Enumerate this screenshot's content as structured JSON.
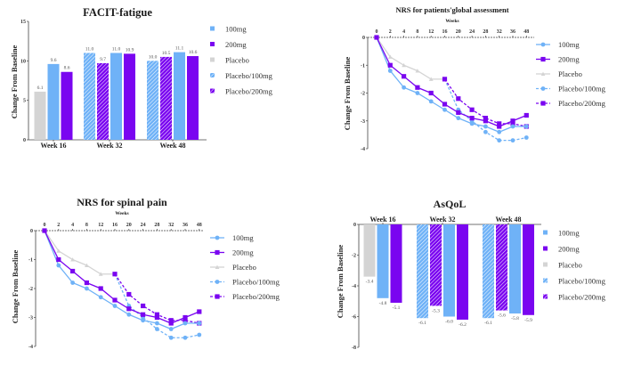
{
  "colors": {
    "100mg": "#6fb2f7",
    "200mg": "#7a05f0",
    "Placebo": "#d4d4d4",
    "Placebo/100mg": "#6fb2f7",
    "Placebo/200mg": "#7a05f0",
    "axis": "#444444"
  },
  "chart_data": [
    {
      "id": "facit",
      "type": "bar",
      "title": "FACIT-fatigue",
      "xlabel": "",
      "ylabel": "Change From Baseline",
      "ylim": [
        0,
        15
      ],
      "yticks": [
        0,
        5,
        10,
        15
      ],
      "categories": [
        "Week 16",
        "Week 32",
        "Week 48"
      ],
      "legend_position": "right",
      "legend": [
        "100mg",
        "200mg",
        "Placebo",
        "Placebo/100mg",
        "Placebo/200mg"
      ],
      "groups": [
        {
          "category": "Week 16",
          "bars": [
            {
              "series": "Placebo",
              "value": 6.1,
              "label": "6.1"
            },
            {
              "series": "100mg",
              "value": 9.6,
              "label": "9.6"
            },
            {
              "series": "200mg",
              "value": 8.6,
              "label": "8.6"
            }
          ]
        },
        {
          "category": "Week 32",
          "bars": [
            {
              "series": "Placebo/100mg",
              "value": 11.0,
              "label": "11.0"
            },
            {
              "series": "Placebo/200mg",
              "value": 9.7,
              "label": "9.7"
            },
            {
              "series": "100mg",
              "value": 11.0,
              "label": "11.0"
            },
            {
              "series": "200mg",
              "value": 10.9,
              "label": "10.9"
            }
          ]
        },
        {
          "category": "Week 48",
          "bars": [
            {
              "series": "Placebo/100mg",
              "value": 10.0,
              "label": "10.0"
            },
            {
              "series": "Placebo/200mg",
              "value": 10.5,
              "label": "10.5"
            },
            {
              "series": "100mg",
              "value": 11.1,
              "label": "11.1"
            },
            {
              "series": "200mg",
              "value": 10.6,
              "label": "10.6"
            }
          ]
        }
      ]
    },
    {
      "id": "nrs-global",
      "type": "line",
      "title": "NRS for patients'global assessment",
      "xlabel": "Weeks",
      "ylabel": "Change From Baseline",
      "ylim": [
        -4,
        0
      ],
      "yticks": [
        0,
        -1,
        -2,
        -3,
        -4
      ],
      "x": [
        0,
        2,
        4,
        8,
        12,
        16,
        20,
        24,
        28,
        32,
        36,
        48
      ],
      "legend_position": "right",
      "series": [
        {
          "name": "100mg",
          "style": "solid",
          "marker": "circle",
          "x": [
            0,
            2,
            4,
            8,
            12,
            16,
            20,
            24,
            28,
            32,
            36,
            48
          ],
          "values": [
            0,
            -1.2,
            -1.8,
            -2.0,
            -2.3,
            -2.6,
            -2.9,
            -3.1,
            -3.2,
            -3.4,
            -3.2,
            -3.2
          ]
        },
        {
          "name": "200mg",
          "style": "solid",
          "marker": "square",
          "x": [
            0,
            2,
            4,
            8,
            12,
            16,
            20,
            24,
            28,
            32,
            36,
            48
          ],
          "values": [
            0,
            -1.0,
            -1.4,
            -1.8,
            -2.0,
            -2.4,
            -2.7,
            -2.9,
            -3.0,
            -3.2,
            -3.0,
            -2.8
          ]
        },
        {
          "name": "Placebo",
          "style": "solid",
          "marker": "triangle",
          "x": [
            0,
            2,
            4,
            8,
            12,
            16
          ],
          "values": [
            0,
            -0.7,
            -1.0,
            -1.2,
            -1.5,
            -1.5
          ]
        },
        {
          "name": "Placebo/100mg",
          "style": "dashed",
          "marker": "circle",
          "x": [
            16,
            20,
            24,
            28,
            32,
            36,
            48
          ],
          "values": [
            -1.5,
            -2.6,
            -3.0,
            -3.4,
            -3.7,
            -3.7,
            -3.6
          ]
        },
        {
          "name": "Placebo/200mg",
          "style": "dashed",
          "marker": "square",
          "x": [
            16,
            20,
            24,
            28,
            32,
            36,
            48
          ],
          "values": [
            -1.5,
            -2.2,
            -2.6,
            -2.9,
            -3.1,
            -3.1,
            -3.2
          ]
        }
      ]
    },
    {
      "id": "nrs-spinal",
      "type": "line",
      "title": "NRS for spinal pain",
      "xlabel": "Weeks",
      "ylabel": "Change From Baseline",
      "ylim": [
        -4,
        0
      ],
      "yticks": [
        0,
        -1,
        -2,
        -3,
        -4
      ],
      "x": [
        0,
        2,
        4,
        8,
        12,
        16,
        20,
        24,
        28,
        32,
        36,
        48
      ],
      "legend_position": "right",
      "series": [
        {
          "name": "100mg",
          "style": "solid",
          "marker": "circle",
          "x": [
            0,
            2,
            4,
            8,
            12,
            16,
            20,
            24,
            28,
            32,
            36,
            48
          ],
          "values": [
            0,
            -1.2,
            -1.8,
            -2.0,
            -2.3,
            -2.6,
            -2.9,
            -3.1,
            -3.2,
            -3.4,
            -3.2,
            -3.2
          ]
        },
        {
          "name": "200mg",
          "style": "solid",
          "marker": "square",
          "x": [
            0,
            2,
            4,
            8,
            12,
            16,
            20,
            24,
            28,
            32,
            36,
            48
          ],
          "values": [
            0,
            -1.0,
            -1.4,
            -1.8,
            -2.0,
            -2.4,
            -2.7,
            -2.9,
            -3.0,
            -3.2,
            -3.0,
            -2.8
          ]
        },
        {
          "name": "Placebo",
          "style": "solid",
          "marker": "triangle",
          "x": [
            0,
            2,
            4,
            8,
            12,
            16
          ],
          "values": [
            0,
            -0.7,
            -1.0,
            -1.2,
            -1.5,
            -1.5
          ]
        },
        {
          "name": "Placebo/100mg",
          "style": "dashed",
          "marker": "circle",
          "x": [
            16,
            20,
            24,
            28,
            32,
            36,
            48
          ],
          "values": [
            -1.5,
            -2.6,
            -3.0,
            -3.4,
            -3.7,
            -3.7,
            -3.6
          ]
        },
        {
          "name": "Placebo/200mg",
          "style": "dashed",
          "marker": "square",
          "x": [
            16,
            20,
            24,
            28,
            32,
            36,
            48
          ],
          "values": [
            -1.5,
            -2.2,
            -2.6,
            -2.9,
            -3.1,
            -3.1,
            -3.2
          ]
        }
      ]
    },
    {
      "id": "asqol",
      "type": "bar",
      "title": "AsQoL",
      "xlabel": "",
      "ylabel": "Change From Baseline",
      "ylim": [
        -8,
        0
      ],
      "yticks": [
        0,
        -2,
        -4,
        -6,
        -8
      ],
      "categories": [
        "Week 16",
        "Week 32",
        "Week 48"
      ],
      "legend_position": "right",
      "legend": [
        "100mg",
        "200mg",
        "Placebo",
        "Placebo/100mg",
        "Placebo/200mg"
      ],
      "groups": [
        {
          "category": "Week 16",
          "bars": [
            {
              "series": "Placebo",
              "value": -3.4,
              "label": "-3.4"
            },
            {
              "series": "100mg",
              "value": -4.8,
              "label": "-4.8"
            },
            {
              "series": "200mg",
              "value": -5.1,
              "label": "-5.1"
            }
          ]
        },
        {
          "category": "Week 32",
          "bars": [
            {
              "series": "Placebo/100mg",
              "value": -6.1,
              "label": "-6.1"
            },
            {
              "series": "Placebo/200mg",
              "value": -5.3,
              "label": "-5.3"
            },
            {
              "series": "100mg",
              "value": -6.0,
              "label": "-6.0"
            },
            {
              "series": "200mg",
              "value": -6.2,
              "label": "-6.2"
            }
          ]
        },
        {
          "category": "Week 48",
          "bars": [
            {
              "series": "Placebo/100mg",
              "value": -6.1,
              "label": "-6.1"
            },
            {
              "series": "Placebo/200mg",
              "value": -5.6,
              "label": "-5.6"
            },
            {
              "series": "100mg",
              "value": -5.8,
              "label": "-5.8"
            },
            {
              "series": "200mg",
              "value": -5.9,
              "label": "-5.9"
            }
          ]
        }
      ]
    }
  ]
}
